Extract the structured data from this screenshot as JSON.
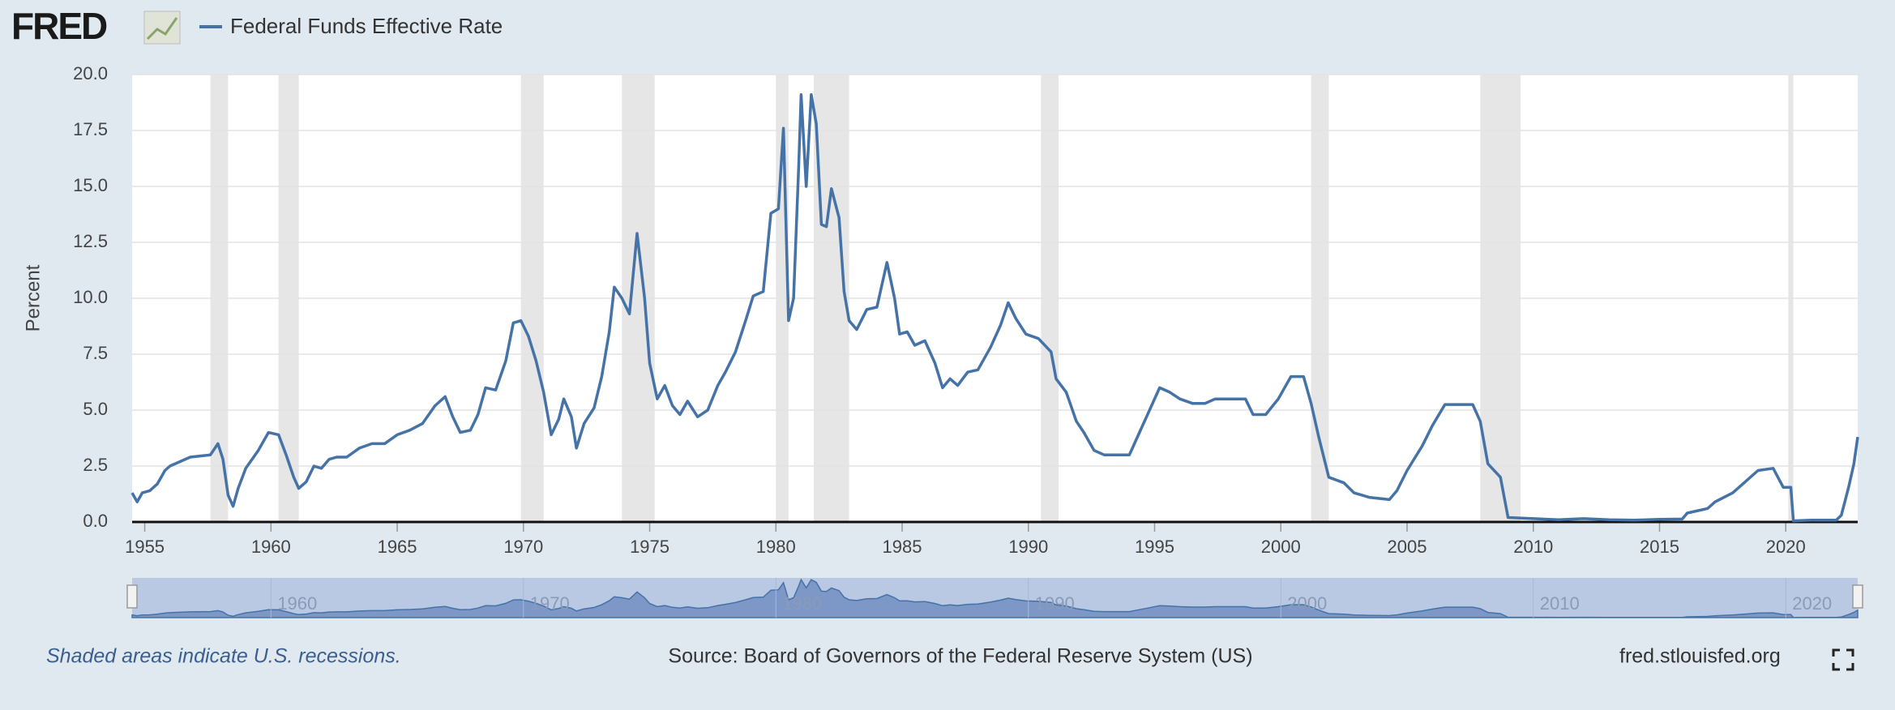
{
  "logo": "FRED",
  "chart_data": {
    "type": "line",
    "y_label": "Percent",
    "x": [
      1954.5,
      1954.7,
      1954.9,
      1955.2,
      1955.5,
      1955.8,
      1956.0,
      1956.4,
      1956.8,
      1957.2,
      1957.6,
      1957.9,
      1958.1,
      1958.3,
      1958.5,
      1958.7,
      1959.0,
      1959.5,
      1959.9,
      1960.3,
      1960.6,
      1960.9,
      1961.1,
      1961.4,
      1961.7,
      1962.0,
      1962.3,
      1962.6,
      1963.0,
      1963.5,
      1964.0,
      1964.5,
      1965.0,
      1965.5,
      1966.0,
      1966.5,
      1966.9,
      1967.2,
      1967.5,
      1967.9,
      1968.2,
      1968.5,
      1968.9,
      1969.3,
      1969.6,
      1969.9,
      1970.2,
      1970.5,
      1970.8,
      1971.1,
      1971.4,
      1971.6,
      1971.9,
      1972.1,
      1972.4,
      1972.8,
      1973.1,
      1973.4,
      1973.6,
      1973.9,
      1974.2,
      1974.5,
      1974.8,
      1975.0,
      1975.3,
      1975.6,
      1975.9,
      1976.2,
      1976.5,
      1976.9,
      1977.3,
      1977.7,
      1978.0,
      1978.4,
      1978.8,
      1979.1,
      1979.5,
      1979.8,
      1980.1,
      1980.3,
      1980.5,
      1980.7,
      1980.9,
      1981.0,
      1981.2,
      1981.4,
      1981.6,
      1981.8,
      1982.0,
      1982.2,
      1982.5,
      1982.7,
      1982.9,
      1983.2,
      1983.6,
      1984.0,
      1984.4,
      1984.7,
      1984.9,
      1985.2,
      1985.5,
      1985.9,
      1986.3,
      1986.6,
      1986.9,
      1987.2,
      1987.6,
      1988.0,
      1988.5,
      1988.9,
      1989.2,
      1989.5,
      1989.9,
      1990.4,
      1990.9,
      1991.1,
      1991.5,
      1991.9,
      1992.2,
      1992.6,
      1993.0,
      1993.5,
      1994.0,
      1994.4,
      1994.8,
      1995.2,
      1995.6,
      1996.0,
      1996.5,
      1997.0,
      1997.4,
      1998.0,
      1998.6,
      1998.9,
      1999.4,
      1999.9,
      2000.4,
      2000.9,
      2001.2,
      2001.5,
      2001.9,
      2002.5,
      2002.9,
      2003.5,
      2004.3,
      2004.6,
      2005.0,
      2005.6,
      2006.0,
      2006.5,
      2007.0,
      2007.6,
      2007.9,
      2008.2,
      2008.7,
      2009.0,
      2010.0,
      2011.0,
      2012.0,
      2013.0,
      2014.0,
      2015.0,
      2015.9,
      2016.1,
      2016.9,
      2017.2,
      2017.9,
      2018.4,
      2018.9,
      2019.5,
      2019.9,
      2020.2,
      2020.3,
      2021.0,
      2022.0,
      2022.2,
      2022.5,
      2022.7,
      2022.85
    ],
    "series": [
      {
        "name": "Federal Funds Effective Rate",
        "color": "#4572a7",
        "values": [
          1.3,
          0.9,
          1.3,
          1.4,
          1.7,
          2.3,
          2.5,
          2.7,
          2.9,
          2.95,
          3.0,
          3.5,
          2.8,
          1.2,
          0.7,
          1.5,
          2.4,
          3.2,
          4.0,
          3.9,
          3.0,
          2.0,
          1.5,
          1.8,
          2.5,
          2.4,
          2.8,
          2.9,
          2.9,
          3.3,
          3.5,
          3.5,
          3.9,
          4.1,
          4.4,
          5.2,
          5.6,
          4.7,
          4.0,
          4.1,
          4.8,
          6.0,
          5.9,
          7.2,
          8.9,
          9.0,
          8.3,
          7.2,
          5.8,
          3.9,
          4.6,
          5.5,
          4.7,
          3.3,
          4.4,
          5.1,
          6.5,
          8.5,
          10.5,
          10.0,
          9.3,
          12.9,
          10.0,
          7.1,
          5.5,
          6.1,
          5.2,
          4.8,
          5.4,
          4.7,
          5.0,
          6.1,
          6.7,
          7.6,
          9.0,
          10.1,
          10.3,
          13.8,
          14.0,
          17.6,
          9.0,
          10.0,
          15.8,
          19.1,
          15.0,
          19.1,
          17.8,
          13.3,
          13.2,
          14.9,
          13.6,
          10.3,
          9.0,
          8.6,
          9.5,
          9.6,
          11.6,
          10.0,
          8.4,
          8.5,
          7.9,
          8.1,
          7.1,
          6.0,
          6.4,
          6.1,
          6.7,
          6.8,
          7.8,
          8.8,
          9.8,
          9.1,
          8.4,
          8.2,
          7.6,
          6.4,
          5.8,
          4.5,
          4.0,
          3.2,
          3.0,
          3.0,
          3.0,
          4.0,
          5.0,
          6.0,
          5.8,
          5.5,
          5.3,
          5.3,
          5.5,
          5.5,
          5.5,
          4.8,
          4.8,
          5.5,
          6.5,
          6.5,
          5.3,
          3.8,
          2.0,
          1.75,
          1.3,
          1.1,
          1.0,
          1.4,
          2.3,
          3.4,
          4.3,
          5.25,
          5.25,
          5.25,
          4.5,
          2.6,
          2.0,
          0.2,
          0.15,
          0.1,
          0.15,
          0.1,
          0.08,
          0.12,
          0.13,
          0.4,
          0.6,
          0.9,
          1.3,
          1.8,
          2.3,
          2.4,
          1.55,
          1.55,
          0.05,
          0.08,
          0.08,
          0.3,
          1.6,
          2.6,
          3.8
        ]
      }
    ],
    "xlim": [
      1954.5,
      2022.85
    ],
    "xticks": [
      1955,
      1960,
      1965,
      1970,
      1975,
      1980,
      1985,
      1990,
      1995,
      2000,
      2005,
      2010,
      2015,
      2020
    ],
    "ylim": [
      0,
      20
    ],
    "yticks": [
      {
        "value": 0,
        "label": "0.0"
      },
      {
        "value": 2.5,
        "label": "2.5"
      },
      {
        "value": 5,
        "label": "5.0"
      },
      {
        "value": 7.5,
        "label": "7.5"
      },
      {
        "value": 10,
        "label": "10.0"
      },
      {
        "value": 12.5,
        "label": "12.5"
      },
      {
        "value": 15,
        "label": "15.0"
      },
      {
        "value": 17.5,
        "label": "17.5"
      },
      {
        "value": 20,
        "label": "20.0"
      }
    ],
    "grid": true,
    "recessions": [
      [
        1957.6,
        1958.3
      ],
      [
        1960.3,
        1961.1
      ],
      [
        1969.9,
        1970.8
      ],
      [
        1973.9,
        1975.2
      ],
      [
        1980.0,
        1980.5
      ],
      [
        1981.5,
        1982.9
      ],
      [
        1990.5,
        1991.2
      ],
      [
        2001.2,
        2001.9
      ],
      [
        2007.9,
        2009.5
      ],
      [
        2020.1,
        2020.3
      ]
    ],
    "navigator_ticks": [
      1960,
      1970,
      1980,
      1990,
      2000,
      2010,
      2020
    ]
  },
  "footer": {
    "note": "Shaded areas indicate U.S. recessions.",
    "source": "Source: Board of Governors of the Federal Reserve System (US)",
    "site": "fred.stlouisfed.org"
  }
}
